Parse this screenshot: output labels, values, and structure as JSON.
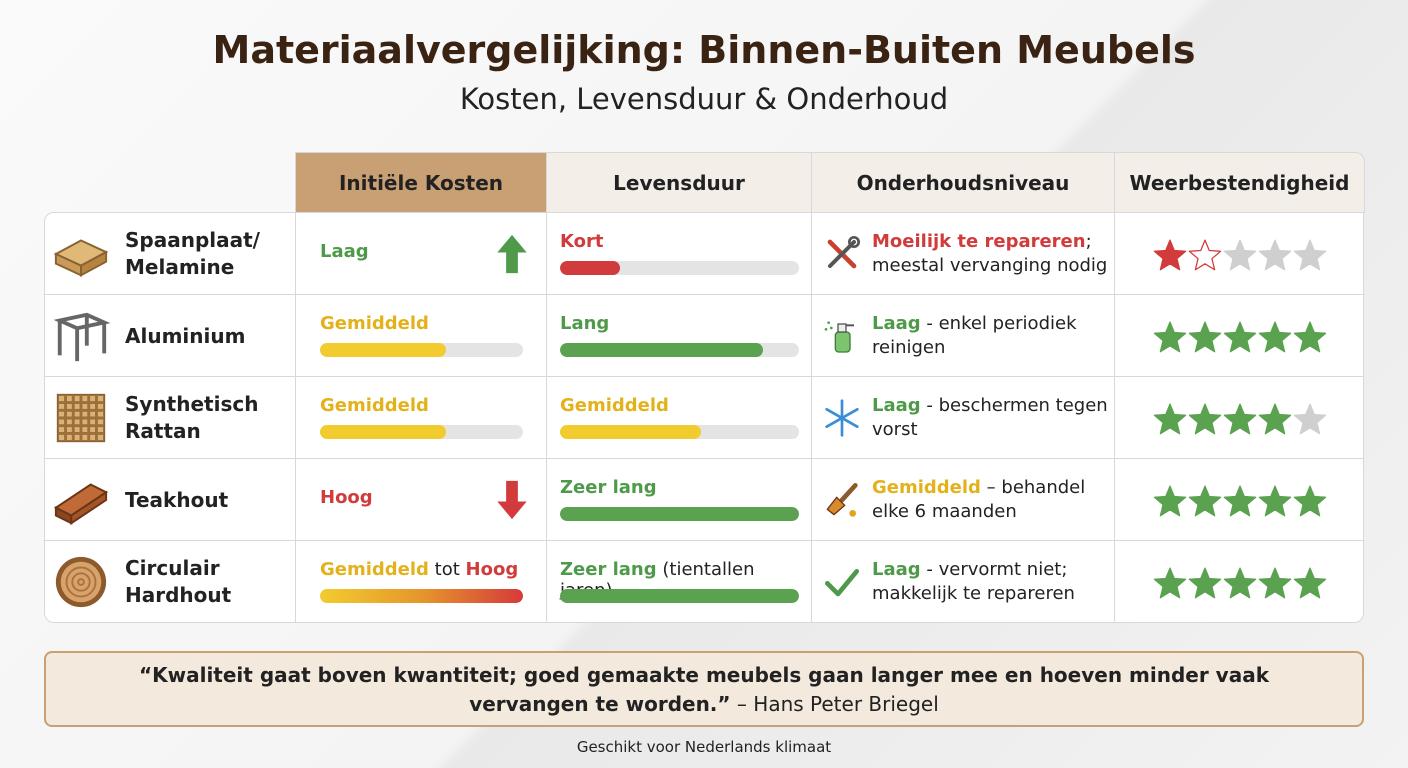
{
  "header": {
    "title": "Materiaalvergelijking: Binnen-Buiten Meubels",
    "subtitle": "Kosten, Levensduur & Onderhoud"
  },
  "table": {
    "columns": [
      "Initiële Kosten",
      "Levensduur",
      "Onderhoudsniveau",
      "Weerbestendigheid"
    ],
    "bar_max": 100,
    "rows": [
      {
        "material": [
          "Spaanplaat/",
          "Melamine"
        ],
        "icon": "board",
        "cost": {
          "parts": [
            {
              "text": "Laag",
              "color": "#4f9a4a"
            }
          ],
          "trend": "up"
        },
        "lifespan": {
          "parts": [
            {
              "text": "Kort",
              "color": "#d23b3b"
            }
          ],
          "bar": 25,
          "bar_color": "#d23b3b"
        },
        "maintenance": {
          "icon": "tools",
          "parts": [
            {
              "text": "Moeilijk te repareren",
              "color": "#d23b3b"
            },
            {
              "text": "; meestal vervanging nodig"
            }
          ]
        },
        "stars": [
          "red",
          "red-outline",
          "grey",
          "grey",
          "grey"
        ]
      },
      {
        "material": [
          "Aluminium"
        ],
        "icon": "frame",
        "cost": {
          "parts": [
            {
              "text": "Gemiddeld",
              "color": "#e3b21a"
            }
          ],
          "bar": 62,
          "bar_color": "#f2cc2f"
        },
        "lifespan": {
          "parts": [
            {
              "text": "Lang",
              "color": "#4f9a4a"
            }
          ],
          "bar": 85,
          "bar_color": "#5aa150"
        },
        "maintenance": {
          "icon": "spray",
          "parts": [
            {
              "text": "Laag",
              "color": "#4f9a4a"
            },
            {
              "text": " - enkel periodiek reinigen"
            }
          ]
        },
        "stars": [
          "green",
          "green",
          "green",
          "green",
          "green"
        ]
      },
      {
        "material": [
          "Synthetisch",
          "Rattan"
        ],
        "icon": "weave",
        "cost": {
          "parts": [
            {
              "text": "Gemiddeld",
              "color": "#e3b21a"
            }
          ],
          "bar": 62,
          "bar_color": "#f2cc2f"
        },
        "lifespan": {
          "parts": [
            {
              "text": "Gemiddeld",
              "color": "#e3b21a"
            }
          ],
          "bar": 59,
          "bar_color": "#f2cc2f"
        },
        "maintenance": {
          "icon": "snow",
          "parts": [
            {
              "text": "Laag",
              "color": "#4f9a4a"
            },
            {
              "text": " - beschermen tegen vorst"
            }
          ]
        },
        "stars": [
          "green",
          "green",
          "green",
          "green",
          "grey"
        ]
      },
      {
        "material": [
          "Teakhout"
        ],
        "icon": "plank",
        "cost": {
          "parts": [
            {
              "text": "Hoog",
              "color": "#d23b3b"
            }
          ],
          "trend": "down"
        },
        "lifespan": {
          "parts": [
            {
              "text": "Zeer lang",
              "color": "#4f9a4a"
            }
          ],
          "bar": 100,
          "bar_color": "#5aa150"
        },
        "maintenance": {
          "icon": "brush",
          "parts": [
            {
              "text": "Gemiddeld",
              "color": "#e3b21a"
            },
            {
              "text": " – behandel elke 6 maanden"
            }
          ]
        },
        "stars": [
          "green",
          "green",
          "green",
          "green",
          "green"
        ]
      },
      {
        "material": [
          "Circulair",
          "Hardhout"
        ],
        "icon": "log",
        "cost": {
          "parts": [
            {
              "text": "Gemiddeld",
              "color": "#e3b21a"
            },
            {
              "text": " tot "
            },
            {
              "text": "Hoog",
              "color": "#d23b3b"
            }
          ],
          "bar": 100,
          "bar_color": [
            "#f2cc2f",
            "#e5962c",
            "#d63a3a"
          ]
        },
        "lifespan": {
          "parts": [
            {
              "text": "Zeer lang",
              "color": "#4f9a4a"
            },
            {
              "text": " (tientallen jaren)"
            }
          ],
          "bar": 100,
          "bar_color": "#5aa150"
        },
        "maintenance": {
          "icon": "check",
          "parts": [
            {
              "text": "Laag",
              "color": "#4f9a4a"
            },
            {
              "text": " - vervormt niet; makkelijk te repareren"
            }
          ]
        },
        "stars": [
          "green",
          "green",
          "green",
          "green",
          "green"
        ]
      }
    ]
  },
  "quote": {
    "text": "“Kwaliteit gaat boven kwantiteit; goed gemaakte meubels gaan langer mee en hoeven minder vaak vervangen te worden.”",
    "author": "– Hans Peter Briegel"
  },
  "footer": "Geschikt voor Nederlands klimaat"
}
